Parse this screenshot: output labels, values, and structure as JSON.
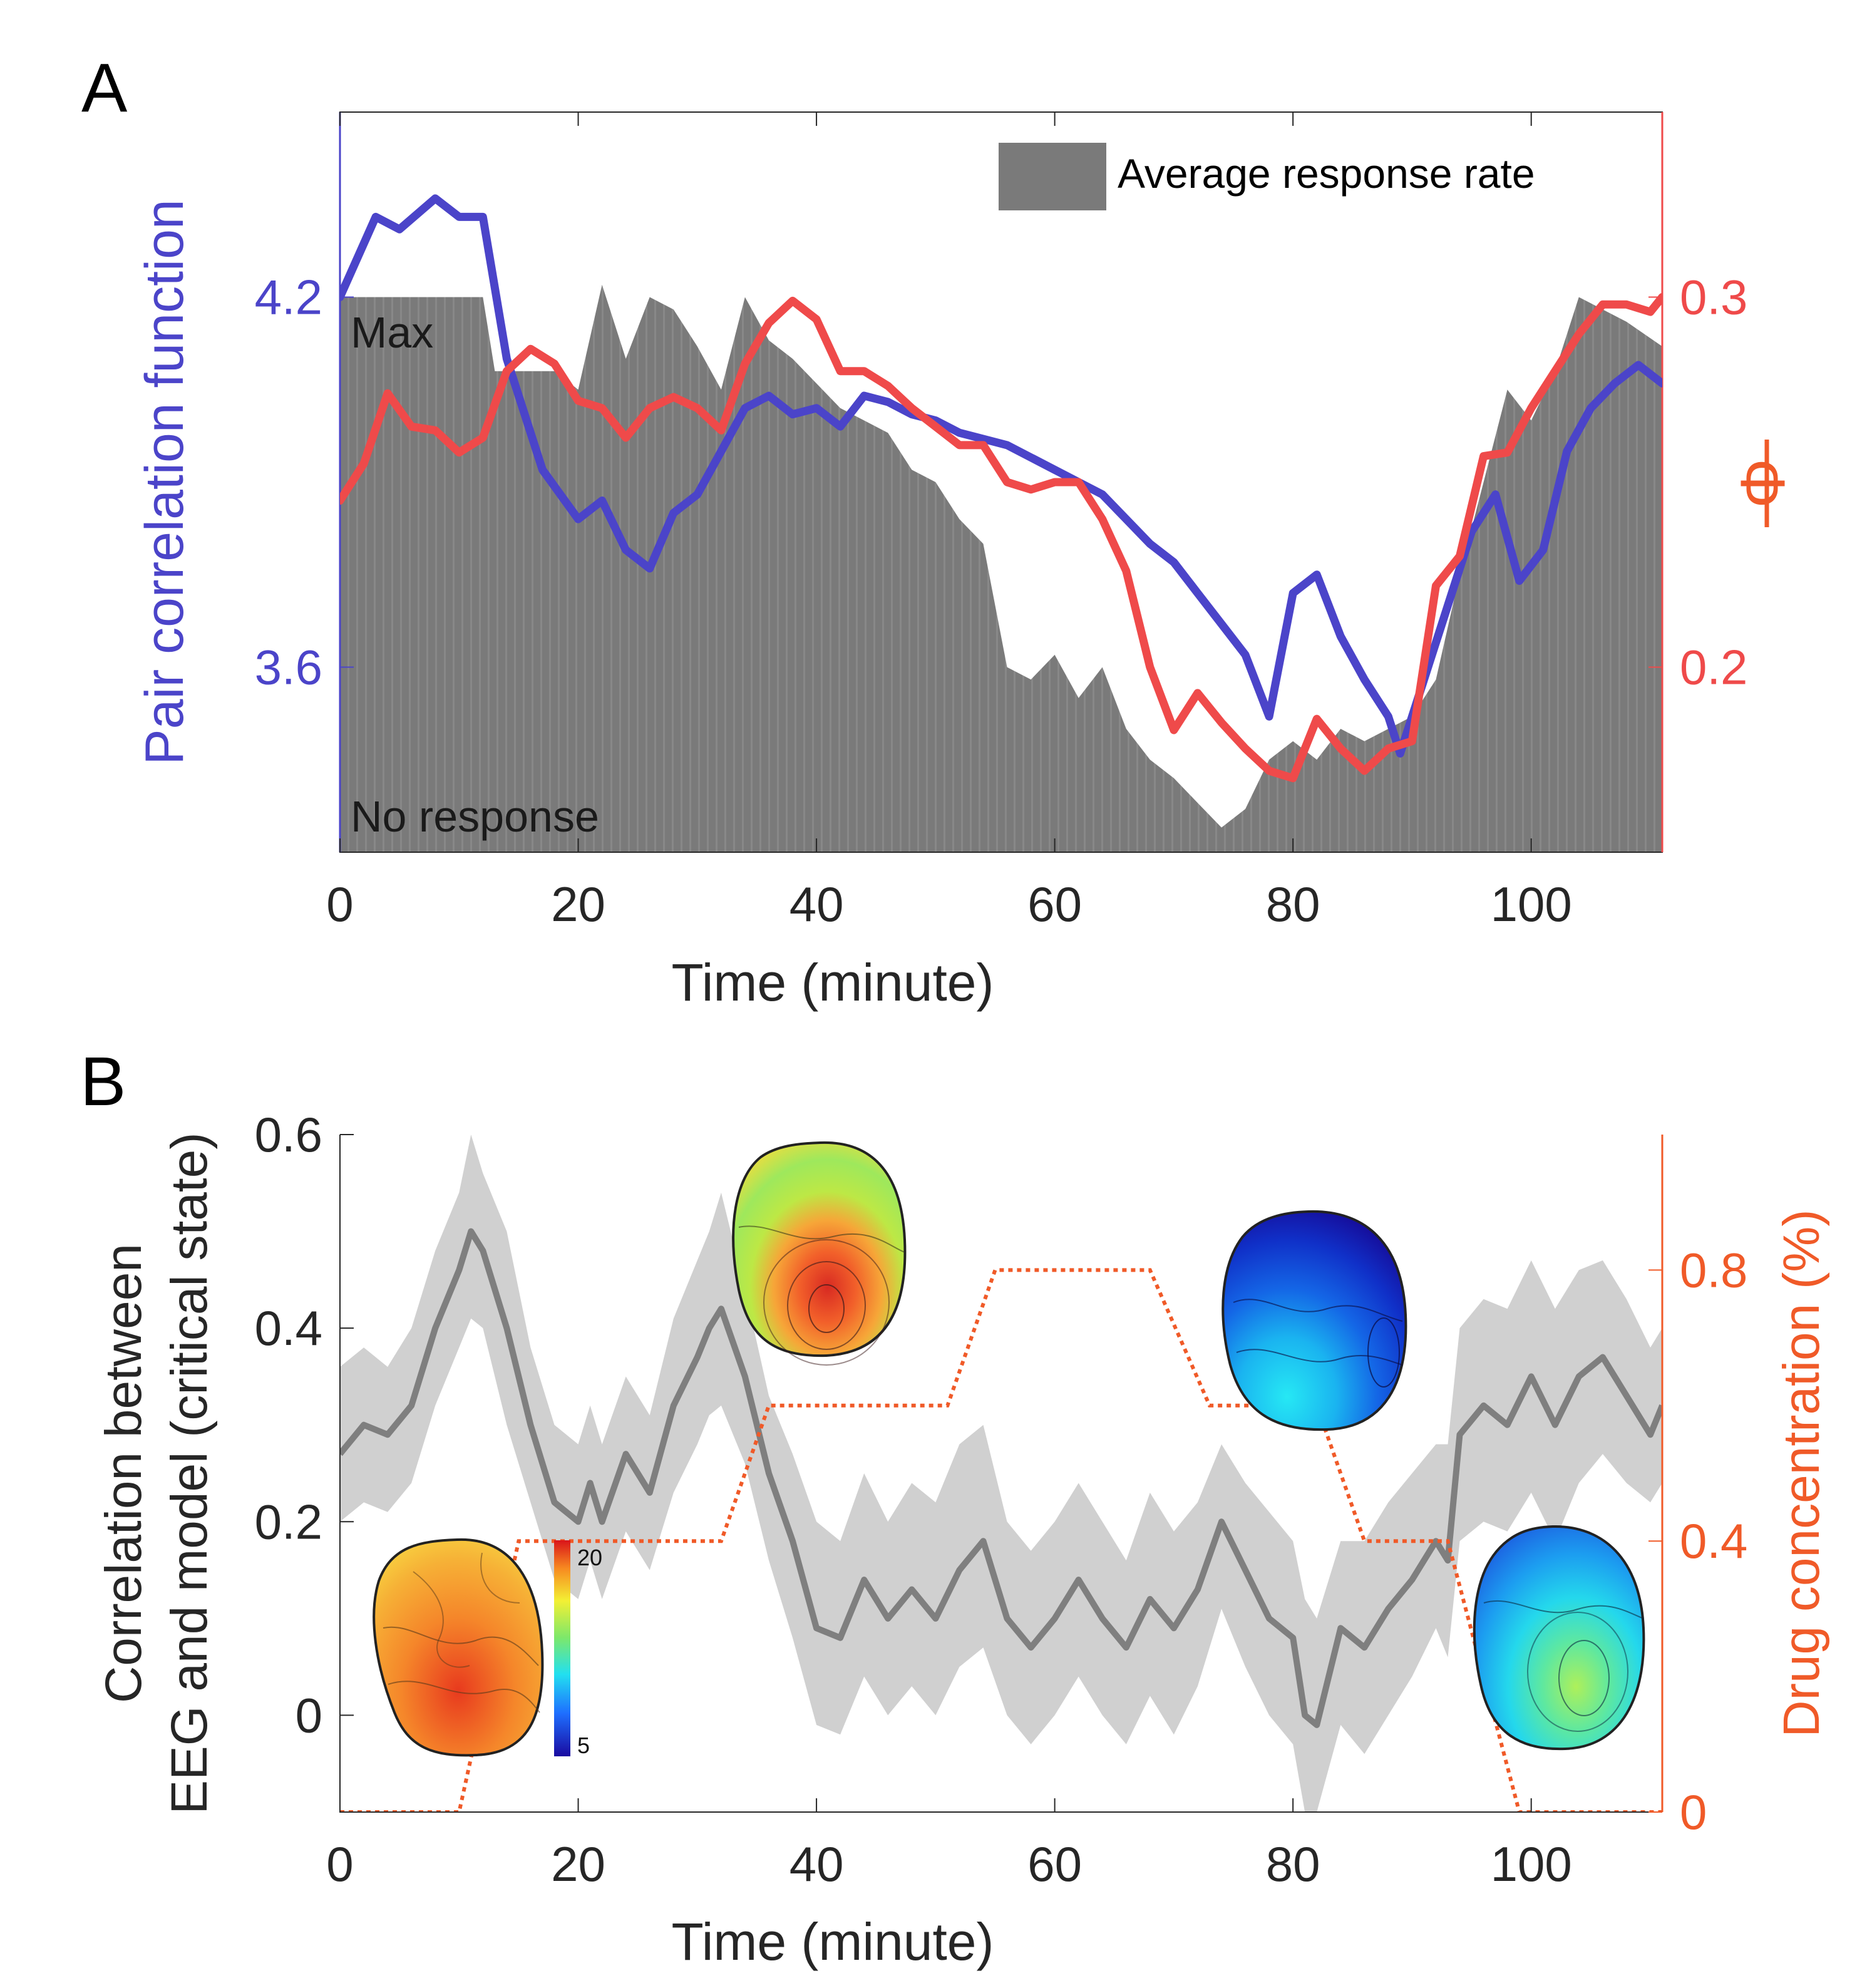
{
  "chart_data": [
    {
      "panel": "A",
      "type": "line",
      "xlabel": "Time (minute)",
      "ylabel_left": "Pair correlation function",
      "ylabel_right": "Φ",
      "xlim": [
        0,
        111
      ],
      "ylim_left": [
        3.3,
        4.5
      ],
      "ylim_right": [
        0.15,
        0.35
      ],
      "x_ticks": [
        0,
        20,
        40,
        60,
        80,
        100
      ],
      "y_ticks_left": [
        3.6,
        4.2
      ],
      "y_ticks_right": [
        0.2,
        0.3
      ],
      "legend": [
        "Average response rate"
      ],
      "legend_position": "top-right",
      "annotations": [
        "Max",
        "No response"
      ],
      "colors": {
        "pair": "#4b44c9",
        "phi": "#ef4a4a",
        "response": "#7a7a7a"
      },
      "series": [
        {
          "name": "Pair correlation function",
          "axis": "left",
          "x": [
            0,
            3,
            5,
            8,
            10,
            12,
            14,
            17,
            20,
            22,
            24,
            26,
            28,
            30,
            32,
            34,
            36,
            38,
            40,
            42,
            44,
            46,
            48,
            50,
            52,
            54,
            56,
            58,
            60,
            62,
            64,
            66,
            68,
            70,
            72,
            74,
            76,
            78,
            80,
            82,
            84,
            86,
            88,
            89,
            91,
            93,
            95,
            97,
            99,
            101,
            103,
            105,
            107,
            109,
            111
          ],
          "y": [
            4.2,
            4.33,
            4.31,
            4.36,
            4.33,
            4.33,
            4.1,
            3.92,
            3.84,
            3.87,
            3.79,
            3.76,
            3.85,
            3.88,
            3.95,
            4.02,
            4.04,
            4.01,
            4.02,
            3.99,
            4.04,
            4.03,
            4.01,
            4.0,
            3.98,
            3.97,
            3.96,
            3.94,
            3.92,
            3.9,
            3.88,
            3.84,
            3.8,
            3.77,
            3.72,
            3.67,
            3.62,
            3.52,
            3.72,
            3.75,
            3.65,
            3.58,
            3.52,
            3.46,
            3.58,
            3.7,
            3.82,
            3.88,
            3.74,
            3.79,
            3.95,
            4.02,
            4.06,
            4.09,
            4.06
          ]
        },
        {
          "name": "Φ",
          "axis": "right",
          "x": [
            0,
            2,
            4,
            6,
            8,
            10,
            12,
            14,
            16,
            18,
            20,
            22,
            24,
            26,
            28,
            30,
            32,
            34,
            36,
            38,
            40,
            42,
            44,
            46,
            48,
            50,
            52,
            54,
            56,
            58,
            60,
            62,
            64,
            66,
            68,
            70,
            72,
            74,
            76,
            78,
            80,
            82,
            84,
            86,
            88,
            90,
            92,
            94,
            96,
            98,
            100,
            102,
            104,
            106,
            108,
            110,
            111
          ],
          "y": [
            0.245,
            0.255,
            0.274,
            0.265,
            0.264,
            0.258,
            0.262,
            0.28,
            0.286,
            0.282,
            0.272,
            0.27,
            0.262,
            0.27,
            0.273,
            0.27,
            0.264,
            0.282,
            0.293,
            0.299,
            0.294,
            0.28,
            0.28,
            0.276,
            0.27,
            0.265,
            0.26,
            0.26,
            0.25,
            0.248,
            0.25,
            0.25,
            0.24,
            0.226,
            0.2,
            0.183,
            0.193,
            0.185,
            0.178,
            0.172,
            0.17,
            0.186,
            0.178,
            0.172,
            0.178,
            0.18,
            0.222,
            0.23,
            0.257,
            0.258,
            0.27,
            0.28,
            0.29,
            0.298,
            0.298,
            0.296,
            0.3
          ]
        },
        {
          "name": "Average response rate",
          "type": "area",
          "axis": "left",
          "ymax_label": "Max",
          "ymin_label": "No response",
          "x": [
            0,
            12,
            13,
            15,
            18,
            20,
            22,
            24,
            26,
            28,
            30,
            32,
            34,
            36,
            38,
            40,
            42,
            44,
            46,
            48,
            50,
            52,
            54,
            56,
            58,
            60,
            62,
            64,
            66,
            68,
            70,
            72,
            74,
            76,
            78,
            80,
            82,
            84,
            86,
            88,
            90,
            92,
            94,
            96,
            98,
            100,
            102,
            104,
            106,
            108,
            111
          ],
          "y": [
            4.2,
            4.2,
            4.08,
            4.08,
            4.08,
            4.05,
            4.22,
            4.1,
            4.2,
            4.18,
            4.12,
            4.05,
            4.2,
            4.13,
            4.1,
            4.06,
            4.02,
            4.0,
            3.98,
            3.92,
            3.9,
            3.84,
            3.8,
            3.6,
            3.58,
            3.62,
            3.55,
            3.6,
            3.5,
            3.45,
            3.42,
            3.38,
            3.34,
            3.37,
            3.45,
            3.48,
            3.45,
            3.5,
            3.48,
            3.5,
            3.52,
            3.58,
            3.75,
            3.9,
            4.05,
            4.0,
            4.08,
            4.2,
            4.18,
            4.16,
            4.12
          ]
        }
      ]
    },
    {
      "panel": "B",
      "type": "line",
      "xlabel": "Time (minute)",
      "ylabel_left": "Correlation between EEG and model (critical state)",
      "ylabel_left_lines": [
        "Correlation between",
        "EEG and model (critical state)"
      ],
      "ylabel_right": "Drug concentration (%)",
      "xlim": [
        0,
        111
      ],
      "ylim_left": [
        -0.1,
        0.6
      ],
      "ylim_right": [
        0,
        1.0
      ],
      "x_ticks": [
        0,
        20,
        40,
        60,
        80,
        100
      ],
      "y_ticks_left": [
        0,
        0.2,
        0.4,
        0.6
      ],
      "y_ticks_left_labels": [
        "0",
        "0.2",
        "0.4",
        "0.6"
      ],
      "y_ticks_right": [
        0,
        0.4,
        0.8
      ],
      "y_ticks_right_labels": [
        "0",
        "0.4",
        "0.8"
      ],
      "colorbar": {
        "min_label": "5",
        "max_label": "20"
      },
      "colors": {
        "correlation": "#7f7f7f",
        "band": "#d0d0d0",
        "drug": "#f05a28"
      },
      "series": [
        {
          "name": "Correlation (mean)",
          "axis": "left",
          "x": [
            0,
            2,
            4,
            6,
            8,
            10,
            11,
            12,
            14,
            16,
            18,
            20,
            21,
            22,
            24,
            26,
            28,
            30,
            31,
            32,
            34,
            36,
            38,
            40,
            42,
            44,
            46,
            48,
            50,
            52,
            54,
            56,
            58,
            60,
            62,
            64,
            66,
            68,
            70,
            72,
            74,
            76,
            78,
            80,
            81,
            82,
            84,
            86,
            88,
            90,
            92,
            93,
            94,
            96,
            98,
            100,
            102,
            104,
            106,
            108,
            110,
            111
          ],
          "y": [
            0.27,
            0.3,
            0.29,
            0.32,
            0.4,
            0.46,
            0.5,
            0.48,
            0.4,
            0.3,
            0.22,
            0.2,
            0.24,
            0.2,
            0.27,
            0.23,
            0.32,
            0.37,
            0.4,
            0.42,
            0.35,
            0.25,
            0.18,
            0.09,
            0.08,
            0.14,
            0.1,
            0.13,
            0.1,
            0.15,
            0.18,
            0.1,
            0.07,
            0.1,
            0.14,
            0.1,
            0.07,
            0.12,
            0.09,
            0.13,
            0.2,
            0.15,
            0.1,
            0.08,
            0.0,
            -0.01,
            0.09,
            0.07,
            0.11,
            0.14,
            0.18,
            0.16,
            0.29,
            0.32,
            0.3,
            0.35,
            0.3,
            0.35,
            0.37,
            0.33,
            0.29,
            0.32
          ]
        },
        {
          "name": "Correlation upper band",
          "axis": "left",
          "x": [
            0,
            2,
            4,
            6,
            8,
            10,
            11,
            12,
            14,
            16,
            18,
            20,
            21,
            22,
            24,
            26,
            28,
            30,
            31,
            32,
            34,
            36,
            38,
            40,
            42,
            44,
            46,
            48,
            50,
            52,
            54,
            56,
            58,
            60,
            62,
            64,
            66,
            68,
            70,
            72,
            74,
            76,
            78,
            80,
            81,
            82,
            84,
            86,
            88,
            90,
            92,
            93,
            94,
            96,
            98,
            100,
            102,
            104,
            106,
            108,
            110,
            111
          ],
          "y": [
            0.36,
            0.38,
            0.36,
            0.4,
            0.48,
            0.54,
            0.6,
            0.56,
            0.5,
            0.38,
            0.3,
            0.28,
            0.32,
            0.28,
            0.35,
            0.31,
            0.41,
            0.47,
            0.5,
            0.54,
            0.44,
            0.33,
            0.27,
            0.2,
            0.18,
            0.25,
            0.2,
            0.24,
            0.22,
            0.28,
            0.3,
            0.2,
            0.17,
            0.2,
            0.24,
            0.2,
            0.16,
            0.23,
            0.19,
            0.22,
            0.28,
            0.24,
            0.21,
            0.18,
            0.12,
            0.1,
            0.18,
            0.18,
            0.22,
            0.25,
            0.28,
            0.28,
            0.4,
            0.43,
            0.42,
            0.47,
            0.42,
            0.46,
            0.47,
            0.43,
            0.38,
            0.4
          ]
        },
        {
          "name": "Correlation lower band",
          "axis": "left",
          "x": [
            0,
            2,
            4,
            6,
            8,
            10,
            11,
            12,
            14,
            16,
            18,
            20,
            21,
            22,
            24,
            26,
            28,
            30,
            31,
            32,
            34,
            36,
            38,
            40,
            42,
            44,
            46,
            48,
            50,
            52,
            54,
            56,
            58,
            60,
            62,
            64,
            66,
            68,
            70,
            72,
            74,
            76,
            78,
            80,
            81,
            82,
            84,
            86,
            88,
            90,
            92,
            93,
            94,
            96,
            98,
            100,
            102,
            104,
            106,
            108,
            110,
            111
          ],
          "y": [
            0.2,
            0.22,
            0.21,
            0.24,
            0.32,
            0.38,
            0.41,
            0.4,
            0.3,
            0.22,
            0.14,
            0.12,
            0.16,
            0.12,
            0.19,
            0.15,
            0.23,
            0.28,
            0.31,
            0.32,
            0.26,
            0.16,
            0.08,
            -0.01,
            -0.02,
            0.04,
            0.0,
            0.03,
            0.0,
            0.05,
            0.07,
            0.0,
            -0.03,
            0.0,
            0.04,
            0.0,
            -0.03,
            0.02,
            -0.02,
            0.03,
            0.11,
            0.05,
            0.0,
            -0.03,
            -0.1,
            -0.1,
            -0.01,
            -0.04,
            0.0,
            0.04,
            0.09,
            0.06,
            0.18,
            0.2,
            0.19,
            0.23,
            0.18,
            0.24,
            0.27,
            0.24,
            0.22,
            0.24
          ]
        },
        {
          "name": "Drug concentration",
          "axis": "right",
          "style": "dotted",
          "x": [
            0,
            10,
            15,
            32,
            36,
            51,
            55,
            68,
            73,
            82,
            86,
            93,
            99,
            111
          ],
          "y": [
            0,
            0,
            0.4,
            0.4,
            0.6,
            0.6,
            0.8,
            0.8,
            0.6,
            0.6,
            0.4,
            0.4,
            0,
            0
          ]
        }
      ]
    }
  ]
}
